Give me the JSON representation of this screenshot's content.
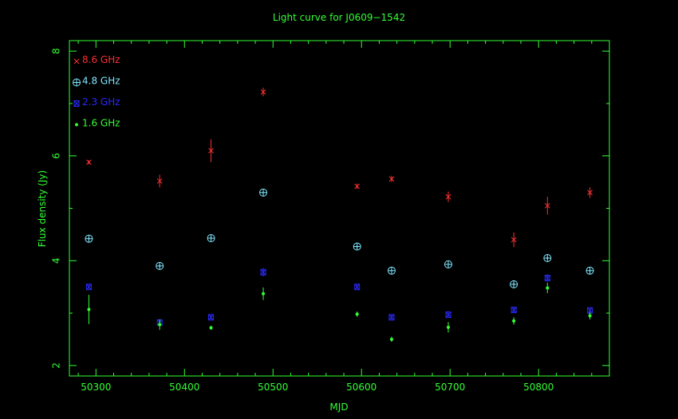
{
  "chart_data": {
    "type": "scatter",
    "title": "Light curve for J0609−1542",
    "xlabel": "MJD",
    "ylabel": "Flux density (Jy)",
    "xlim": [
      50270,
      50880
    ],
    "ylim": [
      1.8,
      8.2
    ],
    "xticks": [
      50300,
      50400,
      50500,
      50600,
      50700,
      50800
    ],
    "xtick_labels": [
      "50300",
      "50400",
      "50500",
      "50600",
      "50700",
      "50800"
    ],
    "yticks": [
      2,
      4,
      6,
      8
    ],
    "ytick_labels": [
      "2",
      "4",
      "6",
      "8"
    ],
    "legend_position": "top-left",
    "grid": false,
    "colors": {
      "background": "#000000",
      "axes": "#33ff33",
      "axis_text": "#33ff33",
      "title": "#33ff33"
    },
    "series": [
      {
        "name": "8.6 GHz",
        "marker": "cross",
        "color": "#ff3030",
        "points": [
          {
            "x": 50292,
            "y": 5.88,
            "err": 0.04
          },
          {
            "x": 50372,
            "y": 5.52,
            "err": 0.12
          },
          {
            "x": 50430,
            "y": 6.1,
            "err": 0.22
          },
          {
            "x": 50489,
            "y": 7.22,
            "err": 0.08
          },
          {
            "x": 50595,
            "y": 5.42,
            "err": 0.05
          },
          {
            "x": 50634,
            "y": 5.56,
            "err": 0.06
          },
          {
            "x": 50698,
            "y": 5.22,
            "err": 0.1
          },
          {
            "x": 50772,
            "y": 4.4,
            "err": 0.14
          },
          {
            "x": 50810,
            "y": 5.05,
            "err": 0.17
          },
          {
            "x": 50858,
            "y": 5.3,
            "err": 0.1
          }
        ]
      },
      {
        "name": "4.8 GHz",
        "marker": "circle-plus",
        "color": "#7fe8ff",
        "points": [
          {
            "x": 50292,
            "y": 4.42,
            "err": 0.03
          },
          {
            "x": 50372,
            "y": 3.9,
            "err": 0.03
          },
          {
            "x": 50430,
            "y": 4.43,
            "err": 0.03
          },
          {
            "x": 50489,
            "y": 5.3,
            "err": 0.03
          },
          {
            "x": 50595,
            "y": 4.27,
            "err": 0.03
          },
          {
            "x": 50634,
            "y": 3.81,
            "err": 0.03
          },
          {
            "x": 50698,
            "y": 3.93,
            "err": 0.03
          },
          {
            "x": 50772,
            "y": 3.55,
            "err": 0.03
          },
          {
            "x": 50810,
            "y": 4.05,
            "err": 0.03
          },
          {
            "x": 50858,
            "y": 3.81,
            "err": 0.03
          }
        ]
      },
      {
        "name": "2.3 GHz",
        "marker": "box-x",
        "color": "#2a2aff",
        "points": [
          {
            "x": 50292,
            "y": 3.5,
            "err": 0.04
          },
          {
            "x": 50372,
            "y": 2.82,
            "err": 0.05
          },
          {
            "x": 50430,
            "y": 2.92,
            "err": 0.04
          },
          {
            "x": 50489,
            "y": 3.78,
            "err": 0.08
          },
          {
            "x": 50595,
            "y": 3.5,
            "err": 0.04
          },
          {
            "x": 50634,
            "y": 2.92,
            "err": 0.04
          },
          {
            "x": 50698,
            "y": 2.97,
            "err": 0.04
          },
          {
            "x": 50772,
            "y": 3.06,
            "err": 0.04
          },
          {
            "x": 50810,
            "y": 3.67,
            "err": 0.07
          },
          {
            "x": 50858,
            "y": 3.05,
            "err": 0.04
          }
        ]
      },
      {
        "name": "1.6 GHz",
        "marker": "dot",
        "color": "#33ff33",
        "points": [
          {
            "x": 50292,
            "y": 3.07,
            "err": 0.28
          },
          {
            "x": 50372,
            "y": 2.78,
            "err": 0.1
          },
          {
            "x": 50430,
            "y": 2.72,
            "err": 0.04
          },
          {
            "x": 50489,
            "y": 3.37,
            "err": 0.12
          },
          {
            "x": 50595,
            "y": 2.98,
            "err": 0.05
          },
          {
            "x": 50634,
            "y": 2.5,
            "err": 0.05
          },
          {
            "x": 50698,
            "y": 2.73,
            "err": 0.1
          },
          {
            "x": 50772,
            "y": 2.85,
            "err": 0.07
          },
          {
            "x": 50810,
            "y": 3.48,
            "err": 0.1
          },
          {
            "x": 50858,
            "y": 2.95,
            "err": 0.07
          }
        ]
      }
    ]
  }
}
